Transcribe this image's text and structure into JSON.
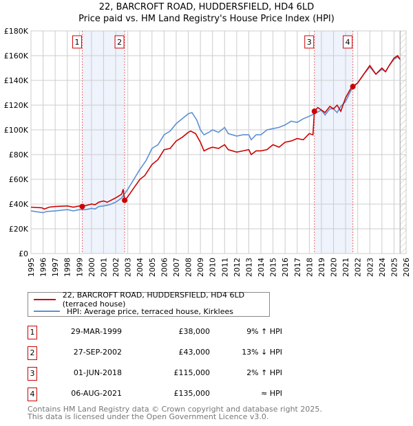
{
  "chart_data": {
    "type": "line",
    "title": "22, BARCROFT ROAD, HUDDERSFIELD, HD4 6LD",
    "subtitle": "Price paid vs. HM Land Registry's House Price Index (HPI)",
    "xlim": [
      1995,
      2026
    ],
    "ylim": [
      0,
      180000
    ],
    "yticks": [
      {
        "v": 0,
        "label": "£0"
      },
      {
        "v": 20000,
        "label": "£20K"
      },
      {
        "v": 40000,
        "label": "£40K"
      },
      {
        "v": 60000,
        "label": "£60K"
      },
      {
        "v": 80000,
        "label": "£80K"
      },
      {
        "v": 100000,
        "label": "£100K"
      },
      {
        "v": 120000,
        "label": "£120K"
      },
      {
        "v": 140000,
        "label": "£140K"
      },
      {
        "v": 160000,
        "label": "£160K"
      },
      {
        "v": 180000,
        "label": "£180K"
      }
    ],
    "xticks": [
      "1995",
      "1996",
      "1997",
      "1998",
      "1999",
      "2000",
      "2001",
      "2002",
      "2003",
      "2004",
      "2005",
      "2006",
      "2007",
      "2008",
      "2009",
      "2010",
      "2011",
      "2012",
      "2013",
      "2014",
      "2015",
      "2016",
      "2017",
      "2018",
      "2019",
      "2020",
      "2021",
      "2022",
      "2023",
      "2024",
      "2025",
      "2026"
    ],
    "grid": true,
    "forecast_start": 2025.5,
    "series": [
      {
        "name": "22, BARCROFT ROAD, HUDDERSFIELD, HD4 6LD (terraced house)",
        "color": "#cc0000",
        "points": [
          [
            1995,
            37500
          ],
          [
            1995.9,
            37000
          ],
          [
            1996.1,
            36000
          ],
          [
            1996.5,
            37500
          ],
          [
            1997,
            38000
          ],
          [
            1998,
            38500
          ],
          [
            1998.5,
            37500
          ],
          [
            1999,
            38500
          ],
          [
            1999.24,
            38000
          ],
          [
            2000,
            40000
          ],
          [
            2000.3,
            39500
          ],
          [
            2000.6,
            41500
          ],
          [
            2001,
            42500
          ],
          [
            2001.3,
            41500
          ],
          [
            2002,
            45000
          ],
          [
            2002.5,
            48000
          ],
          [
            2002.62,
            52000
          ],
          [
            2002.74,
            43000
          ],
          [
            2003,
            46000
          ],
          [
            2003.5,
            53000
          ],
          [
            2004,
            60000
          ],
          [
            2004.4,
            63000
          ],
          [
            2005,
            72000
          ],
          [
            2005.5,
            76000
          ],
          [
            2006,
            84000
          ],
          [
            2006.5,
            85000
          ],
          [
            2007,
            91000
          ],
          [
            2007.5,
            94000
          ],
          [
            2008,
            98000
          ],
          [
            2008.2,
            99000
          ],
          [
            2008.6,
            97000
          ],
          [
            2009,
            90000
          ],
          [
            2009.3,
            83000
          ],
          [
            2009.7,
            85000
          ],
          [
            2010,
            86000
          ],
          [
            2010.5,
            85000
          ],
          [
            2011,
            88000
          ],
          [
            2011.3,
            84000
          ],
          [
            2012,
            82000
          ],
          [
            2012.5,
            83000
          ],
          [
            2013,
            84000
          ],
          [
            2013.2,
            80000
          ],
          [
            2013.6,
            83000
          ],
          [
            2014,
            83000
          ],
          [
            2014.5,
            84000
          ],
          [
            2015,
            88000
          ],
          [
            2015.5,
            86000
          ],
          [
            2016,
            90000
          ],
          [
            2016.5,
            91000
          ],
          [
            2017,
            93000
          ],
          [
            2017.5,
            92000
          ],
          [
            2018,
            97000
          ],
          [
            2018.3,
            96000
          ],
          [
            2018.42,
            115000
          ],
          [
            2018.7,
            118000
          ],
          [
            2019.3,
            114000
          ],
          [
            2019.7,
            119000
          ],
          [
            2020,
            117000
          ],
          [
            2020.3,
            120000
          ],
          [
            2020.6,
            115000
          ],
          [
            2021,
            126000
          ],
          [
            2021.4,
            133000
          ],
          [
            2021.6,
            135000
          ],
          [
            2022,
            138000
          ],
          [
            2022.5,
            145000
          ],
          [
            2023,
            152000
          ],
          [
            2023.5,
            145000
          ],
          [
            2024,
            150000
          ],
          [
            2024.3,
            147000
          ],
          [
            2024.6,
            152000
          ],
          [
            2025,
            158000
          ],
          [
            2025.3,
            160000
          ],
          [
            2025.5,
            157000
          ]
        ]
      },
      {
        "name": "HPI: Average price, terraced house, Kirklees",
        "color": "#5b8fd4",
        "points": [
          [
            1995,
            34500
          ],
          [
            1996,
            33000
          ],
          [
            1996.3,
            34000
          ],
          [
            1997,
            34500
          ],
          [
            1998,
            35500
          ],
          [
            1998.5,
            34500
          ],
          [
            1999,
            35500
          ],
          [
            1999.5,
            35500
          ],
          [
            2000,
            36500
          ],
          [
            2000.3,
            36000
          ],
          [
            2000.6,
            38000
          ],
          [
            2001,
            38500
          ],
          [
            2001.5,
            39500
          ],
          [
            2002,
            41500
          ],
          [
            2002.5,
            45000
          ],
          [
            2003,
            52000
          ],
          [
            2003.5,
            60000
          ],
          [
            2004,
            68000
          ],
          [
            2004.5,
            75000
          ],
          [
            2005,
            85000
          ],
          [
            2005.5,
            88000
          ],
          [
            2006,
            96000
          ],
          [
            2006.5,
            99000
          ],
          [
            2007,
            105000
          ],
          [
            2007.5,
            109000
          ],
          [
            2008,
            113000
          ],
          [
            2008.3,
            114000
          ],
          [
            2008.7,
            108000
          ],
          [
            2009,
            100000
          ],
          [
            2009.3,
            96000
          ],
          [
            2009.7,
            98000
          ],
          [
            2010,
            100000
          ],
          [
            2010.5,
            98000
          ],
          [
            2011,
            102000
          ],
          [
            2011.3,
            97000
          ],
          [
            2012,
            95000
          ],
          [
            2012.5,
            96000
          ],
          [
            2013,
            96000
          ],
          [
            2013.2,
            92000
          ],
          [
            2013.6,
            96000
          ],
          [
            2014,
            96000
          ],
          [
            2014.5,
            100000
          ],
          [
            2015,
            101000
          ],
          [
            2015.5,
            102000
          ],
          [
            2016,
            104000
          ],
          [
            2016.5,
            107000
          ],
          [
            2017,
            106000
          ],
          [
            2017.5,
            109000
          ],
          [
            2018,
            111000
          ],
          [
            2018.42,
            113000
          ],
          [
            2019,
            116000
          ],
          [
            2019.3,
            112000
          ],
          [
            2019.7,
            117000
          ],
          [
            2020,
            117000
          ],
          [
            2020.3,
            114000
          ],
          [
            2020.6,
            119000
          ],
          [
            2021,
            123000
          ],
          [
            2021.4,
            131000
          ],
          [
            2021.6,
            134000
          ],
          [
            2022,
            138000
          ],
          [
            2022.5,
            145000
          ],
          [
            2023,
            151000
          ],
          [
            2023.5,
            145000
          ],
          [
            2024,
            149000
          ],
          [
            2024.3,
            147000
          ],
          [
            2024.6,
            152000
          ],
          [
            2025,
            157000
          ],
          [
            2025.3,
            159000
          ],
          [
            2025.5,
            157000
          ]
        ]
      }
    ],
    "sales": [
      {
        "n": "1",
        "year": 1999.24,
        "value": 38000
      },
      {
        "n": "2",
        "year": 2002.74,
        "value": 43000
      },
      {
        "n": "3",
        "year": 2018.42,
        "value": 115000
      },
      {
        "n": "4",
        "year": 2021.6,
        "value": 135000
      }
    ],
    "shaded_ranges": [
      [
        1999.24,
        2002.74
      ],
      [
        2018.42,
        2021.6
      ]
    ]
  },
  "legend": {
    "red": "22, BARCROFT ROAD, HUDDERSFIELD, HD4 6LD (terraced house)",
    "blue": "HPI: Average price, terraced house, Kirklees"
  },
  "table": [
    {
      "n": "1",
      "date": "29-MAR-1999",
      "price": "£38,000",
      "hpi": "9% ↑ HPI"
    },
    {
      "n": "2",
      "date": "27-SEP-2002",
      "price": "£43,000",
      "hpi": "13% ↓ HPI"
    },
    {
      "n": "3",
      "date": "01-JUN-2018",
      "price": "£115,000",
      "hpi": "2% ↑ HPI"
    },
    {
      "n": "4",
      "date": "06-AUG-2021",
      "price": "£135,000",
      "hpi": "≈ HPI"
    }
  ],
  "footer": {
    "line1": "Contains HM Land Registry data © Crown copyright and database right 2025.",
    "line2": "This data is licensed under the Open Government Licence v3.0."
  }
}
